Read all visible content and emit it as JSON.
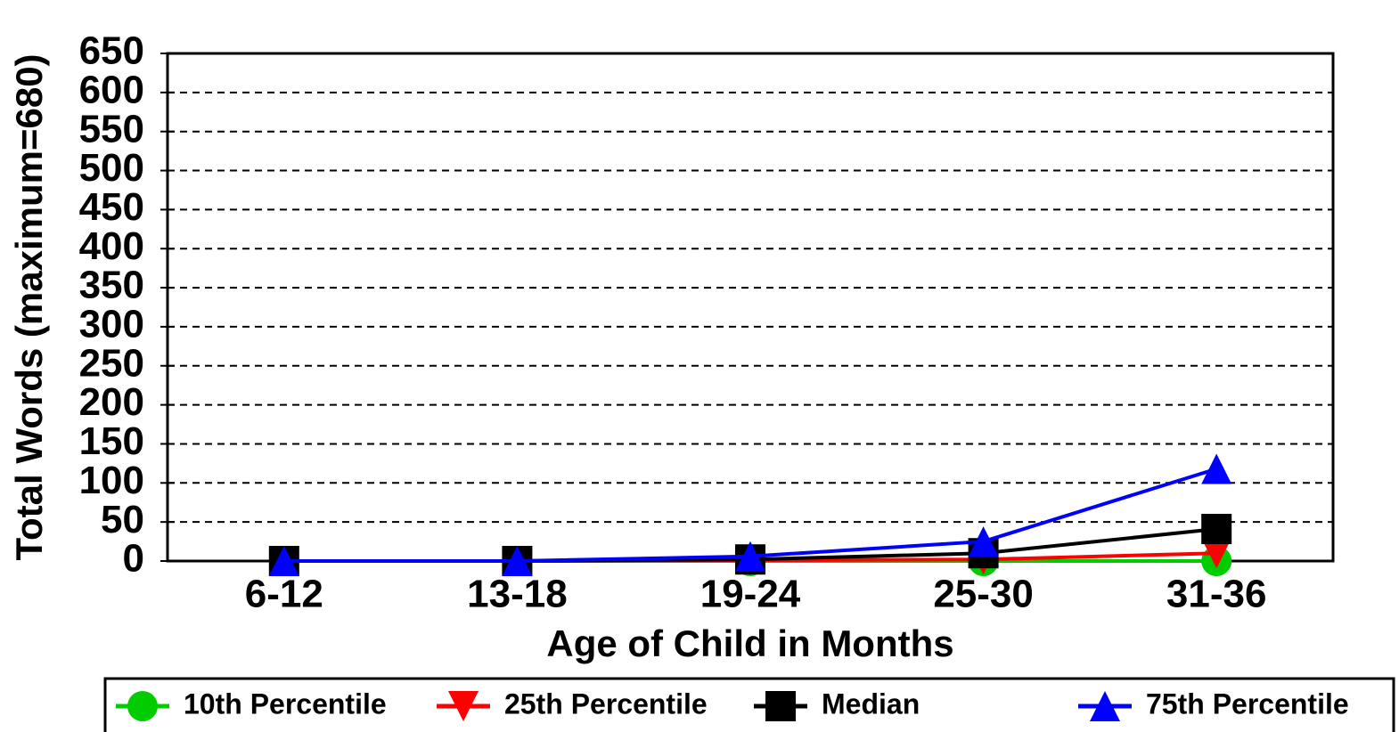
{
  "chart_data": {
    "type": "line",
    "xlabel": "Age of Child in Months",
    "ylabel": "Total Words (maximum=680)",
    "categories": [
      "6-12",
      "13-18",
      "19-24",
      "25-30",
      "31-36"
    ],
    "series": [
      {
        "name": "10th Percentile",
        "color": "#00cc00",
        "marker": "circle",
        "values": [
          0,
          0,
          0,
          0,
          0
        ]
      },
      {
        "name": "25th Percentile",
        "color": "#ff0000",
        "marker": "triangle-down",
        "values": [
          0,
          0,
          1,
          2,
          10
        ]
      },
      {
        "name": "Median",
        "color": "#000000",
        "marker": "square",
        "values": [
          0,
          0,
          2,
          10,
          41
        ]
      },
      {
        "name": "75th Percentile",
        "color": "#0000ff",
        "marker": "triangle-up",
        "values": [
          0,
          0,
          6,
          25,
          118
        ]
      }
    ],
    "ylim": [
      0,
      650
    ],
    "yticks": [
      0,
      50,
      100,
      150,
      200,
      250,
      300,
      350,
      400,
      450,
      500,
      550,
      600,
      650
    ],
    "grid": true,
    "legend": "bottom"
  }
}
